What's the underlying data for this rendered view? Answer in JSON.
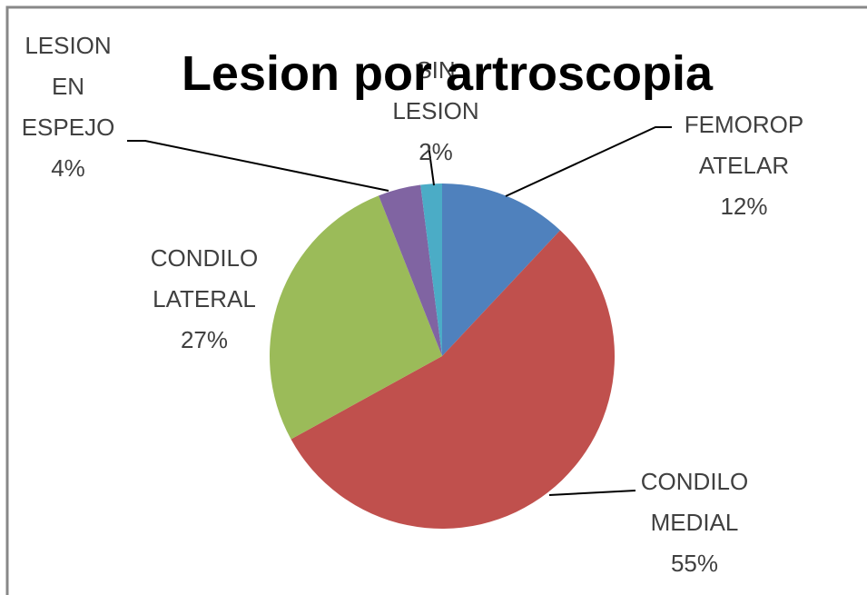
{
  "chart_data": {
    "type": "pie",
    "title": "Lesion por artroscopia",
    "categories": [
      "FEMOROPATELAR",
      "CONDILO MEDIAL",
      "CONDILO LATERAL",
      "LESION EN ESPEJO",
      "SIN LESION"
    ],
    "values": [
      12,
      55,
      27,
      4,
      2
    ],
    "value_labels": [
      "12%",
      "55%",
      "27%",
      "4%",
      "2%"
    ],
    "colors": [
      "#4f81bd",
      "#c0504d",
      "#9bbb59",
      "#8064a2",
      "#4bacc6"
    ]
  }
}
